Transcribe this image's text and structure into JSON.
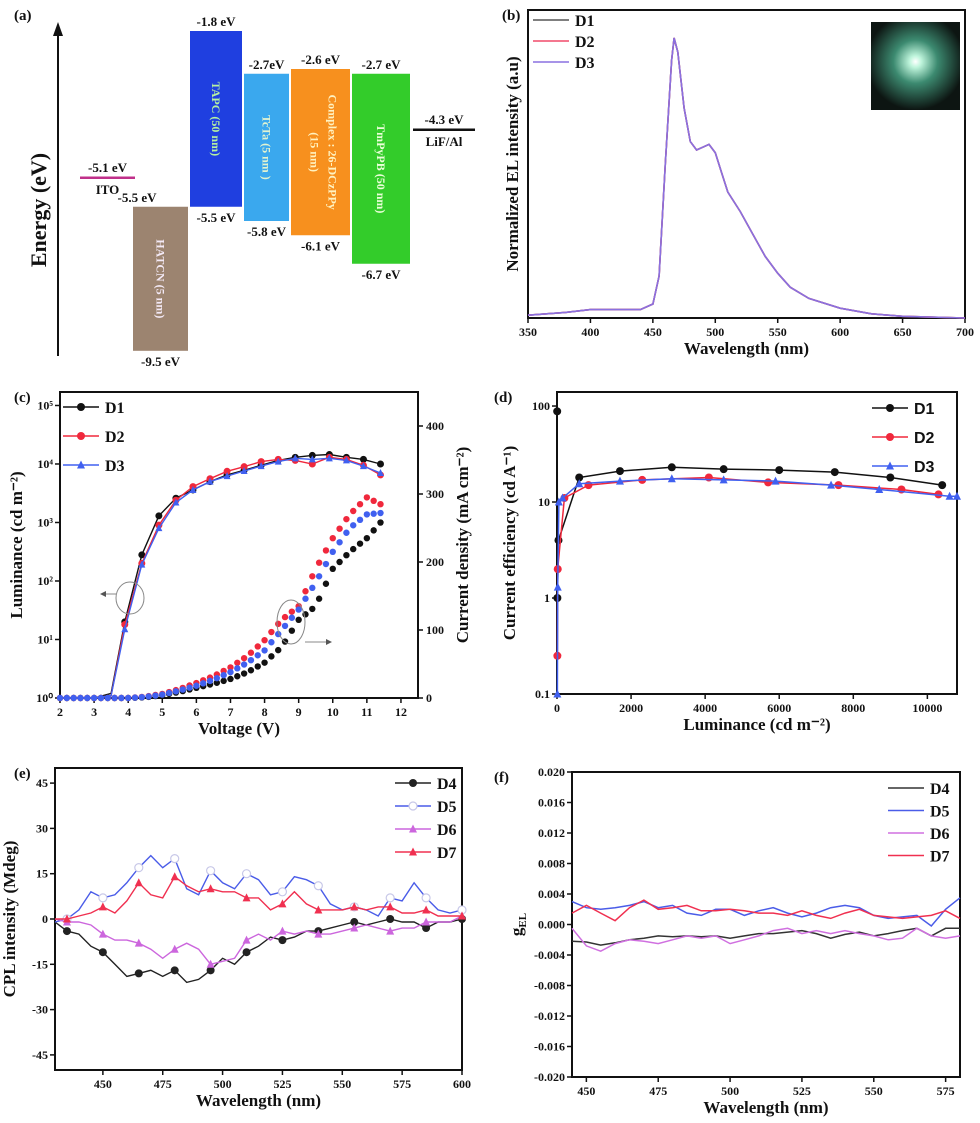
{
  "energy_diagram": {
    "panel_label": "(a)",
    "axis_label": "Energy (eV)",
    "electrodes": [
      {
        "name": "ITO",
        "level": -5.1,
        "level_label": "-5.1 eV",
        "color": "#c0308a"
      },
      {
        "name": "LiF/Al",
        "level": -4.3,
        "level_label": "-4.3 eV",
        "color": "#111111"
      }
    ],
    "layers": [
      {
        "name": "HATCN (5 nm)",
        "top": -5.5,
        "bottom": -9.5,
        "top_label": "-5.5 eV",
        "bottom_label": "-9.5 eV",
        "color": "#9c8470",
        "text_color": "#f3e9f5"
      },
      {
        "name": "TAPC (50 nm)",
        "top": -1.8,
        "bottom": -5.5,
        "top_label": "-1.8 eV",
        "bottom_label": "-5.5 eV",
        "color": "#1f3fe0",
        "text_color": "#b6f0a0"
      },
      {
        "name": "TcTa (5 nm )",
        "top": -2.7,
        "bottom": -5.8,
        "top_label": "-2.7eV",
        "bottom_label": "-5.8 eV",
        "color": "#3aa8ee",
        "text_color": "#e2f3d0"
      },
      {
        "name": "Complex : 26-DCzPPy",
        "name_line2": "(15 nm)",
        "top": -2.6,
        "bottom": -6.1,
        "top_label": "-2.6 eV",
        "bottom_label": "-6.1 eV",
        "color": "#f7901e",
        "text_color": "#fff2c0"
      },
      {
        "name": "TmPyPB (50 nm)",
        "top": -2.7,
        "bottom": -6.7,
        "top_label": "-2.7 eV",
        "bottom_label": "-6.7 eV",
        "color": "#33cc2a",
        "text_color": "#eaffd8"
      }
    ]
  },
  "chart_data": [
    {
      "panel_label": "(b)",
      "type": "line",
      "xlabel": "Wavelength (nm)",
      "ylabel": "Normalized EL intensity (a.u)",
      "xlim": [
        350,
        700
      ],
      "ylim": [
        0,
        1.1
      ],
      "x_ticks": [
        350,
        400,
        450,
        500,
        550,
        600,
        650,
        700
      ],
      "x_tick_labels": [
        "350",
        "400",
        "450",
        "500",
        "550",
        "600",
        "650",
        "700"
      ],
      "y_ticks": [],
      "legend": "top-left",
      "inset": "photo of emitting device (green-blue glow)",
      "x": [
        350,
        380,
        400,
        420,
        440,
        450,
        455,
        460,
        465,
        467,
        470,
        475,
        480,
        485,
        490,
        495,
        500,
        505,
        510,
        520,
        530,
        540,
        550,
        560,
        575,
        600,
        625,
        650,
        700
      ],
      "series": [
        {
          "name": "D1",
          "color": "#555555",
          "values": [
            0.01,
            0.02,
            0.03,
            0.03,
            0.03,
            0.05,
            0.15,
            0.55,
            0.92,
            1.0,
            0.95,
            0.75,
            0.63,
            0.6,
            0.61,
            0.62,
            0.59,
            0.52,
            0.45,
            0.38,
            0.3,
            0.22,
            0.16,
            0.11,
            0.07,
            0.035,
            0.015,
            0.006,
            0.0
          ]
        },
        {
          "name": "D2",
          "color": "#f04a6a",
          "values": [
            0.01,
            0.02,
            0.03,
            0.03,
            0.03,
            0.05,
            0.15,
            0.55,
            0.92,
            1.0,
            0.95,
            0.75,
            0.63,
            0.6,
            0.61,
            0.62,
            0.59,
            0.52,
            0.45,
            0.38,
            0.3,
            0.22,
            0.16,
            0.11,
            0.07,
            0.035,
            0.015,
            0.006,
            0.0
          ]
        },
        {
          "name": "D3",
          "color": "#8a70e0",
          "values": [
            0.01,
            0.02,
            0.03,
            0.03,
            0.03,
            0.05,
            0.15,
            0.55,
            0.92,
            1.0,
            0.95,
            0.75,
            0.63,
            0.6,
            0.61,
            0.62,
            0.59,
            0.52,
            0.45,
            0.38,
            0.3,
            0.22,
            0.16,
            0.11,
            0.07,
            0.035,
            0.015,
            0.006,
            0.0
          ]
        }
      ]
    },
    {
      "panel_label": "(c)",
      "type": "line",
      "xlabel": "Voltage (V)",
      "ylabel": "Luminance (cd m⁻²)",
      "y2label": "Current density (mA cm⁻²)",
      "xlim": [
        2,
        12.5
      ],
      "ylim": [
        1,
        170000
      ],
      "yscale": "log",
      "y2lim": [
        0,
        450
      ],
      "x_ticks": [
        2,
        3,
        4,
        5,
        6,
        7,
        8,
        9,
        10,
        11,
        12
      ],
      "x_tick_labels": [
        "2",
        "3",
        "4",
        "5",
        "6",
        "7",
        "8",
        "9",
        "10",
        "11",
        "12"
      ],
      "y_ticks": [
        1,
        10,
        100,
        1000,
        10000,
        100000
      ],
      "y_tick_labels": [
        "10⁰",
        "10¹",
        "10²",
        "10³",
        "10⁴",
        "10⁵"
      ],
      "y2_ticks": [
        0,
        100,
        200,
        300,
        400
      ],
      "y2_tick_labels": [
        "0",
        "100",
        "200",
        "300",
        "400"
      ],
      "legend": "top-left",
      "luminance_x": [
        2,
        2.5,
        3,
        3.5,
        3.9,
        4.4,
        4.9,
        5.4,
        5.9,
        6.4,
        6.9,
        7.4,
        7.9,
        8.4,
        8.9,
        9.4,
        9.9,
        10.4,
        10.9,
        11.4
      ],
      "current_x": [
        2,
        4,
        4.5,
        5,
        5.5,
        6,
        6.5,
        7,
        7.5,
        8,
        8.5,
        9,
        9.5,
        10,
        10.5,
        11,
        11.4
      ],
      "series": [
        {
          "name": "D1",
          "color": "#111111",
          "marker": "circle",
          "luminance": [
            1,
            1,
            1,
            1.2,
            20,
            280,
            1300,
            2600,
            3600,
            5000,
            6500,
            7800,
            9500,
            11500,
            13000,
            14000,
            14500,
            13000,
            12000,
            10000
          ],
          "current_density": [
            0,
            0,
            1,
            4,
            9,
            15,
            21,
            28,
            38,
            52,
            75,
            115,
            135,
            190,
            215,
            235,
            258
          ]
        },
        {
          "name": "D2",
          "color": "#f0283c",
          "marker": "circle",
          "luminance": [
            1,
            1,
            1,
            1.1,
            18,
            200,
            900,
            2400,
            4100,
            5600,
            7500,
            9000,
            11000,
            12000,
            11500,
            10000,
            13000,
            12000,
            9500,
            6500
          ],
          "current_density": [
            0,
            0,
            2,
            6,
            13,
            22,
            32,
            45,
            62,
            85,
            115,
            135,
            190,
            235,
            270,
            295,
            285
          ]
        },
        {
          "name": "D3",
          "color": "#4060f0",
          "marker": "triangle",
          "luminance": [
            1,
            1,
            1,
            1.1,
            15,
            190,
            800,
            2200,
            3600,
            5000,
            6200,
            7600,
            9200,
            11000,
            12500,
            12000,
            12500,
            11500,
            9200,
            7000
          ],
          "current_density": [
            0,
            0,
            1.5,
            5,
            11,
            18,
            27,
            38,
            52,
            70,
            100,
            130,
            170,
            215,
            250,
            270,
            272
          ]
        }
      ]
    },
    {
      "panel_label": "(d)",
      "type": "line",
      "xlabel": "Luminance (cd m⁻²)",
      "ylabel": "Current efficiency (cd A⁻¹)",
      "xlim": [
        0,
        10800
      ],
      "ylim": [
        0.1,
        140
      ],
      "yscale": "log",
      "x_ticks": [
        0,
        2000,
        4000,
        6000,
        8000,
        10000
      ],
      "x_tick_labels": [
        "0",
        "2000",
        "4000",
        "6000",
        "8000",
        "10000"
      ],
      "y_ticks": [
        0.1,
        1,
        10,
        100
      ],
      "y_tick_labels": [
        "0.1",
        "1",
        "10",
        "100"
      ],
      "legend": "top-right",
      "series": [
        {
          "name": "D1",
          "color": "#111111",
          "marker": "circle",
          "x": [
            5,
            10,
            40,
            600,
            1700,
            3100,
            4500,
            6000,
            7500,
            9000,
            10400
          ],
          "values": [
            88,
            1,
            4,
            18,
            21,
            23,
            22,
            21.5,
            20.5,
            18,
            15
          ]
        },
        {
          "name": "D2",
          "color": "#f0283c",
          "marker": "circle",
          "x": [
            10,
            20,
            200,
            850,
            2300,
            4100,
            5700,
            7600,
            9300,
            10300
          ],
          "values": [
            0.25,
            2,
            11,
            15,
            17,
            18,
            16,
            15,
            13.5,
            12
          ]
        },
        {
          "name": "D3",
          "color": "#4060f0",
          "marker": "triangle",
          "x": [
            10,
            20,
            50,
            150,
            600,
            1700,
            3100,
            4500,
            5900,
            7400,
            8700,
            10600,
            10800
          ],
          "values": [
            0.1,
            1.3,
            10,
            11,
            15.5,
            16.5,
            17.5,
            17,
            16.5,
            15,
            13.5,
            11.5,
            11.5
          ]
        }
      ]
    },
    {
      "panel_label": "(e)",
      "type": "line",
      "xlabel": "Wavelength (nm)",
      "ylabel": "CPL intensity (Mdeg)",
      "xlim": [
        430,
        600
      ],
      "ylim": [
        -50,
        50
      ],
      "x_ticks": [
        450,
        475,
        500,
        525,
        550,
        575,
        600
      ],
      "x_tick_labels": [
        "450",
        "475",
        "500",
        "525",
        "550",
        "575",
        "600"
      ],
      "y_ticks": [
        -45,
        -30,
        -15,
        0,
        15,
        30,
        45
      ],
      "y_tick_labels": [
        "-45",
        "-30",
        "-15",
        "0",
        "15",
        "30",
        "45"
      ],
      "legend": "top-right",
      "x": [
        430,
        435,
        440,
        445,
        450,
        455,
        460,
        465,
        470,
        475,
        480,
        485,
        490,
        495,
        500,
        505,
        510,
        515,
        520,
        525,
        530,
        535,
        540,
        545,
        550,
        555,
        560,
        565,
        570,
        575,
        580,
        585,
        590,
        595,
        600
      ],
      "series": [
        {
          "name": "D4",
          "color": "#222222",
          "marker": "circle",
          "values": [
            -1,
            -4,
            -5,
            -9,
            -11,
            -15,
            -19,
            -18,
            -17,
            -19,
            -17,
            -21,
            -20,
            -17,
            -13,
            -15,
            -11,
            -9,
            -6,
            -7,
            -6,
            -4,
            -4,
            -3,
            -2,
            -1,
            -2,
            -1,
            0,
            -1,
            -1,
            -3,
            -1,
            -1,
            0
          ]
        },
        {
          "name": "D5",
          "color": "#4a5ce8",
          "marker": "open-circle",
          "values": [
            -1,
            0,
            3,
            9,
            7,
            8,
            12,
            17,
            21,
            17,
            20,
            10,
            8,
            16,
            12,
            10,
            15,
            13,
            8,
            9,
            14,
            13,
            11,
            5,
            3,
            4,
            3,
            1,
            7,
            6,
            12,
            7,
            3,
            2,
            3
          ]
        },
        {
          "name": "D6",
          "color": "#cc66dd",
          "marker": "triangle",
          "values": [
            0,
            -1,
            -1,
            -2,
            -5,
            -7,
            -7,
            -8,
            -10,
            -13,
            -10,
            -8,
            -10,
            -15,
            -14,
            -13,
            -7,
            -5,
            -7,
            -4,
            -5,
            -4,
            -5,
            -5,
            -4,
            -3,
            -2,
            -3,
            -4,
            -3,
            -3,
            -1,
            -1,
            -1,
            1
          ]
        },
        {
          "name": "D7",
          "color": "#f03050",
          "marker": "triangle",
          "values": [
            0,
            0,
            1,
            2,
            4,
            2,
            6,
            12,
            8,
            7,
            14,
            11,
            9,
            10,
            9,
            9,
            7,
            7,
            3,
            5,
            9,
            5,
            3,
            3,
            3,
            4,
            3,
            4,
            4,
            2,
            2,
            3,
            1,
            1,
            1
          ]
        }
      ]
    },
    {
      "panel_label": "(f)",
      "type": "line",
      "xlabel": "Wavelength (nm)",
      "ylabel_main": "g",
      "ylabel_sub": "EL",
      "xlim": [
        445,
        580
      ],
      "ylim": [
        -0.02,
        0.02
      ],
      "x_ticks": [
        450,
        475,
        500,
        525,
        550,
        575
      ],
      "x_tick_labels": [
        "450",
        "475",
        "500",
        "525",
        "550",
        "575"
      ],
      "y_ticks": [
        -0.02,
        -0.016,
        -0.012,
        -0.008,
        -0.004,
        0,
        0.004,
        0.008,
        0.012,
        0.016,
        0.02
      ],
      "y_tick_labels": [
        "-0.020",
        "-0.016",
        "-0.012",
        "-0.008",
        "-0.004",
        "0.000",
        "0.004",
        "0.008",
        "0.012",
        "0.016",
        "0.020"
      ],
      "legend": "top-right",
      "x": [
        445,
        450,
        455,
        460,
        465,
        470,
        475,
        480,
        485,
        490,
        495,
        500,
        505,
        510,
        515,
        520,
        525,
        530,
        535,
        540,
        545,
        550,
        555,
        560,
        565,
        570,
        575,
        580
      ],
      "series": [
        {
          "name": "D4",
          "color": "#333333",
          "values": [
            -0.0022,
            -0.0023,
            -0.0027,
            -0.0024,
            -0.002,
            -0.0018,
            -0.0015,
            -0.0016,
            -0.0015,
            -0.0016,
            -0.0015,
            -0.0018,
            -0.0015,
            -0.0012,
            -0.0012,
            -0.001,
            -0.0008,
            -0.0012,
            -0.0018,
            -0.0013,
            -0.001,
            -0.0015,
            -0.0012,
            -0.0008,
            -0.0005,
            -0.0015,
            -0.0005,
            -0.0005
          ]
        },
        {
          "name": "D5",
          "color": "#4a5ce8",
          "values": [
            0.003,
            0.0022,
            0.002,
            0.0022,
            0.0025,
            0.003,
            0.0022,
            0.0025,
            0.0015,
            0.0012,
            0.002,
            0.002,
            0.0012,
            0.0018,
            0.0022,
            0.0015,
            0.001,
            0.0015,
            0.0022,
            0.0025,
            0.0022,
            0.0012,
            0.0008,
            0.001,
            0.0012,
            -0.0002,
            0.002,
            0.0035
          ]
        },
        {
          "name": "D6",
          "color": "#d070e0",
          "values": [
            -0.0005,
            -0.0028,
            -0.0035,
            -0.0025,
            -0.002,
            -0.0022,
            -0.0025,
            -0.002,
            -0.0015,
            -0.0018,
            -0.0015,
            -0.0025,
            -0.002,
            -0.0015,
            -0.0008,
            -0.0005,
            -0.0012,
            -0.0008,
            -0.0012,
            -0.0008,
            -0.0012,
            -0.0015,
            -0.002,
            -0.0018,
            -0.0005,
            -0.0015,
            -0.0018,
            -0.0015
          ]
        },
        {
          "name": "D7",
          "color": "#f03050",
          "values": [
            0.0015,
            0.0025,
            0.0015,
            0.0005,
            0.0022,
            0.0032,
            0.002,
            0.0022,
            0.0025,
            0.0018,
            0.0018,
            0.002,
            0.0018,
            0.0015,
            0.0015,
            0.0012,
            0.0018,
            0.0012,
            0.0008,
            0.0015,
            0.002,
            0.0012,
            0.001,
            0.0008,
            0.001,
            0.0012,
            0.0018,
            0.0008
          ]
        }
      ]
    }
  ]
}
